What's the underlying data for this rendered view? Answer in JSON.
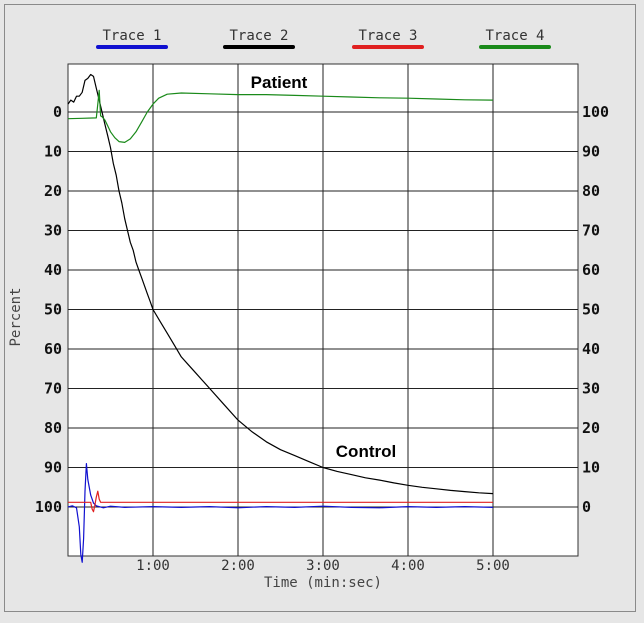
{
  "chart_data": {
    "type": "line",
    "xlabel": "Time (min:sec)",
    "ylabel": "Percent",
    "x_tick_labels": [
      "1:00",
      "2:00",
      "3:00",
      "4:00",
      "5:00"
    ],
    "x_ticks_seconds": [
      60,
      120,
      180,
      240,
      300
    ],
    "xlim_seconds": [
      0,
      360
    ],
    "left_axis": {
      "ticks": [
        0,
        10,
        20,
        30,
        40,
        50,
        60,
        70,
        80,
        90,
        100
      ],
      "direction": "increasing-downward"
    },
    "right_axis": {
      "ticks": [
        100,
        90,
        80,
        70,
        60,
        50,
        40,
        30,
        20,
        10,
        0
      ],
      "direction": "increasing-upward"
    },
    "grid": true,
    "legend_position": "top",
    "legend": [
      {
        "name": "Trace 1",
        "color": "#1010d0"
      },
      {
        "name": "Trace 2",
        "color": "#000000"
      },
      {
        "name": "Trace 3",
        "color": "#e02020"
      },
      {
        "name": "Trace 4",
        "color": "#1a8a1a"
      }
    ],
    "annotations": [
      "Patient",
      "Control"
    ],
    "series": [
      {
        "name": "Trace 1",
        "color": "#1010d0",
        "axis": "right",
        "points": [
          [
            0,
            0
          ],
          [
            3,
            0.3
          ],
          [
            6,
            -0.2
          ],
          [
            8,
            -5
          ],
          [
            9,
            -12
          ],
          [
            10,
            -14
          ],
          [
            11,
            -8
          ],
          [
            12,
            4
          ],
          [
            13,
            11
          ],
          [
            14,
            7
          ],
          [
            16,
            3
          ],
          [
            18,
            1
          ],
          [
            20,
            0.3
          ],
          [
            25,
            -0.2
          ],
          [
            30,
            0.2
          ],
          [
            40,
            -0.1
          ],
          [
            60,
            0.1
          ],
          [
            80,
            -0.1
          ],
          [
            100,
            0.1
          ],
          [
            120,
            -0.2
          ],
          [
            140,
            0.1
          ],
          [
            160,
            -0.1
          ],
          [
            180,
            0.2
          ],
          [
            200,
            -0.1
          ],
          [
            220,
            -0.2
          ],
          [
            240,
            0.1
          ],
          [
            260,
            -0.1
          ],
          [
            280,
            0.1
          ],
          [
            300,
            -0.1
          ]
        ]
      },
      {
        "name": "Trace 2",
        "color": "#000000",
        "axis": "right",
        "points": [
          [
            0,
            102
          ],
          [
            2,
            103
          ],
          [
            4,
            102.5
          ],
          [
            6,
            104
          ],
          [
            8,
            104
          ],
          [
            10,
            105
          ],
          [
            12,
            108
          ],
          [
            14,
            108.5
          ],
          [
            16,
            109.5
          ],
          [
            18,
            109
          ],
          [
            20,
            106
          ],
          [
            22,
            103
          ],
          [
            24,
            100
          ],
          [
            26,
            97
          ],
          [
            28,
            94
          ],
          [
            30,
            91
          ],
          [
            32,
            87
          ],
          [
            34,
            84
          ],
          [
            36,
            80
          ],
          [
            38,
            77
          ],
          [
            40,
            73
          ],
          [
            42,
            70
          ],
          [
            44,
            67
          ],
          [
            46,
            65
          ],
          [
            48,
            62
          ],
          [
            50,
            60
          ],
          [
            52,
            58
          ],
          [
            54,
            56
          ],
          [
            56,
            54
          ],
          [
            58,
            52
          ],
          [
            60,
            50
          ],
          [
            65,
            47
          ],
          [
            70,
            44
          ],
          [
            75,
            41
          ],
          [
            80,
            38
          ],
          [
            85,
            36
          ],
          [
            90,
            34
          ],
          [
            95,
            32
          ],
          [
            100,
            30
          ],
          [
            110,
            26
          ],
          [
            120,
            22
          ],
          [
            130,
            19
          ],
          [
            140,
            16.5
          ],
          [
            150,
            14.5
          ],
          [
            160,
            13
          ],
          [
            170,
            11.5
          ],
          [
            180,
            10
          ],
          [
            190,
            9
          ],
          [
            200,
            8.2
          ],
          [
            210,
            7.4
          ],
          [
            220,
            6.8
          ],
          [
            230,
            6.1
          ],
          [
            240,
            5.5
          ],
          [
            250,
            5
          ],
          [
            260,
            4.6
          ],
          [
            270,
            4.2
          ],
          [
            280,
            3.9
          ],
          [
            290,
            3.6
          ],
          [
            300,
            3.4
          ]
        ]
      },
      {
        "name": "Trace 3",
        "color": "#e02020",
        "axis": "right",
        "points": [
          [
            0,
            1.2
          ],
          [
            10,
            1.2
          ],
          [
            16,
            1.2
          ],
          [
            17,
            -0.5
          ],
          [
            18,
            -1.2
          ],
          [
            19,
            0.5
          ],
          [
            20,
            2.5
          ],
          [
            21,
            4
          ],
          [
            22,
            2
          ],
          [
            23,
            1.2
          ],
          [
            30,
            1.2
          ],
          [
            60,
            1.2
          ],
          [
            120,
            1.2
          ],
          [
            180,
            1.2
          ],
          [
            240,
            1.2
          ],
          [
            300,
            1.2
          ]
        ]
      },
      {
        "name": "Trace 4",
        "color": "#1a8a1a",
        "axis": "right",
        "points": [
          [
            0,
            98.3
          ],
          [
            10,
            98.4
          ],
          [
            20,
            98.5
          ],
          [
            21,
            102
          ],
          [
            22,
            105.5
          ],
          [
            23,
            99
          ],
          [
            24,
            98.8
          ],
          [
            26,
            98
          ],
          [
            28,
            96.5
          ],
          [
            30,
            95
          ],
          [
            33,
            93.5
          ],
          [
            36,
            92.5
          ],
          [
            40,
            92.3
          ],
          [
            44,
            93.2
          ],
          [
            48,
            95
          ],
          [
            52,
            97.5
          ],
          [
            56,
            100
          ],
          [
            60,
            102
          ],
          [
            64,
            103.5
          ],
          [
            70,
            104.5
          ],
          [
            80,
            104.8
          ],
          [
            100,
            104.6
          ],
          [
            120,
            104.4
          ],
          [
            140,
            104.4
          ],
          [
            160,
            104.2
          ],
          [
            180,
            104
          ],
          [
            200,
            103.8
          ],
          [
            220,
            103.6
          ],
          [
            240,
            103.5
          ],
          [
            260,
            103.3
          ],
          [
            280,
            103.1
          ],
          [
            300,
            103
          ]
        ]
      }
    ]
  }
}
